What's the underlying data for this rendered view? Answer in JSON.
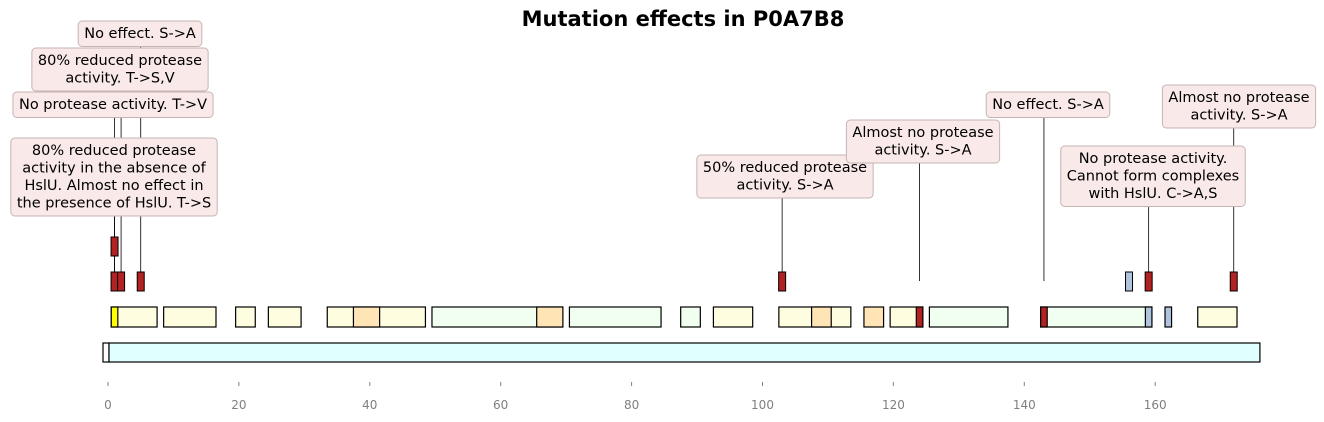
{
  "chart_data": {
    "type": "feature-track",
    "title": "Mutation effects in P0A7B8",
    "x_axis": {
      "range": [
        -1,
        176
      ],
      "ticks": [
        0,
        20,
        40,
        60,
        80,
        100,
        120,
        140,
        160
      ]
    },
    "grid": false,
    "sequence_track": {
      "start": 0,
      "end": 176,
      "color": "#e0ffff"
    },
    "domain_track": [
      {
        "start": 0.5,
        "end": 7.5,
        "color": "#fffde0"
      },
      {
        "start": 0.5,
        "end": 1.5,
        "color": "#ffff00"
      },
      {
        "start": 8.5,
        "end": 16.5,
        "color": "#fffde0"
      },
      {
        "start": 19.5,
        "end": 22.5,
        "color": "#fffde0"
      },
      {
        "start": 24.5,
        "end": 29.5,
        "color": "#fffde0"
      },
      {
        "start": 33.5,
        "end": 48.5,
        "color": "#fffde0"
      },
      {
        "start": 37.5,
        "end": 41.5,
        "color": "#ffe4b5"
      },
      {
        "start": 49.5,
        "end": 69.5,
        "color": "#f0fff0"
      },
      {
        "start": 65.5,
        "end": 69.5,
        "color": "#ffe4b5"
      },
      {
        "start": 70.5,
        "end": 84.5,
        "color": "#f0fff0"
      },
      {
        "start": 87.5,
        "end": 90.5,
        "color": "#f0fff0"
      },
      {
        "start": 92.5,
        "end": 98.5,
        "color": "#fffde0"
      },
      {
        "start": 102.5,
        "end": 113.5,
        "color": "#fffde0"
      },
      {
        "start": 107.5,
        "end": 110.5,
        "color": "#ffe4b5"
      },
      {
        "start": 115.5,
        "end": 118.5,
        "color": "#ffe4b5"
      },
      {
        "start": 119.5,
        "end": 124.5,
        "color": "#fffde0"
      },
      {
        "start": 123.5,
        "end": 124.5,
        "color": "#b22222"
      },
      {
        "start": 125.5,
        "end": 137.5,
        "color": "#f0fff0"
      },
      {
        "start": 142.5,
        "end": 159.5,
        "color": "#f0fff0"
      },
      {
        "start": 142.5,
        "end": 143.5,
        "color": "#b22222"
      },
      {
        "start": 158.5,
        "end": 159.5,
        "color": "#b0c4de"
      },
      {
        "start": 161.5,
        "end": 162.5,
        "color": "#b0c4de"
      },
      {
        "start": 166.5,
        "end": 172.5,
        "color": "#fffde0"
      }
    ],
    "site_markers": [
      {
        "position": 1,
        "row": 1,
        "color": "#b22222"
      },
      {
        "position": 2,
        "row": 1,
        "color": "#b22222"
      },
      {
        "position": 5,
        "row": 1,
        "color": "#b22222"
      },
      {
        "position": 1,
        "row": 2,
        "color": "#b22222"
      },
      {
        "position": 103,
        "row": 1,
        "color": "#b22222"
      },
      {
        "position": 156,
        "row": 1,
        "color": "#b0c4de"
      },
      {
        "position": 159,
        "row": 1,
        "color": "#b22222"
      },
      {
        "position": 172,
        "row": 1,
        "color": "#b22222"
      }
    ],
    "annotations": [
      {
        "position": 1,
        "lines": [
          "80% reduced protease",
          "activity in the absence of",
          "HslU. Almost no effect in",
          "the presence of HslU. T->S"
        ]
      },
      {
        "position": 1,
        "lines": [
          "No protease activity. T->V"
        ]
      },
      {
        "position": 2,
        "lines": [
          "80% reduced protease",
          "activity. T->S,V"
        ]
      },
      {
        "position": 5,
        "lines": [
          "No effect. S->A"
        ]
      },
      {
        "position": 103,
        "lines": [
          "50% reduced protease",
          "activity. S->A"
        ]
      },
      {
        "position": 124,
        "lines": [
          "Almost no protease",
          "activity. S->A"
        ]
      },
      {
        "position": 143,
        "lines": [
          "No effect. S->A"
        ]
      },
      {
        "position": 159,
        "lines": [
          "No protease activity.",
          "Cannot form complexes",
          "with HslU. C->A,S"
        ]
      },
      {
        "position": 172,
        "lines": [
          "Almost no protease",
          "activity. S->A"
        ]
      }
    ]
  }
}
